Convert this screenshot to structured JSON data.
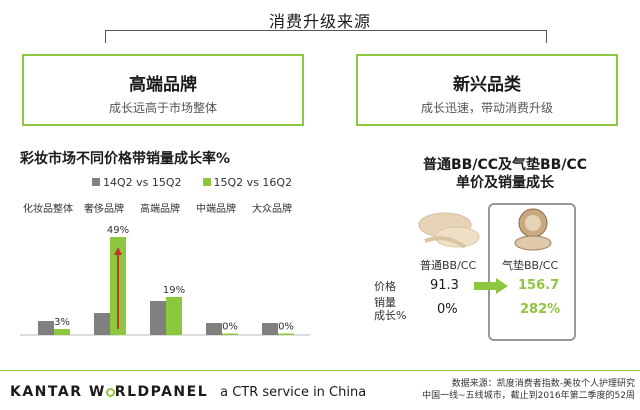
{
  "header": {
    "title": "消费升级来源"
  },
  "left_box": {
    "heading": "高端品牌",
    "subheading": "成长远高于市场整体"
  },
  "right_box": {
    "heading": "新兴品类",
    "subheading": "成长迅速，带动消费升级"
  },
  "chart_data": {
    "type": "bar",
    "title": "彩妆市场不同价格带销量成长率%",
    "categories": [
      "化妆品整体",
      "奢侈品牌",
      "高端品牌",
      "中端品牌",
      "大众品牌"
    ],
    "series": [
      {
        "name": "14Q2 vs 15Q2",
        "color": "#808080",
        "values": [
          7,
          11,
          17,
          6,
          6
        ]
      },
      {
        "name": "15Q2 vs 16Q2",
        "color": "#8dc63f",
        "values": [
          3,
          49,
          19,
          0,
          0
        ]
      }
    ],
    "data_labels": [
      "3%",
      "49%",
      "19%",
      "0%",
      "0%"
    ],
    "ylim": [
      0,
      55
    ]
  },
  "comparison": {
    "title_line1": "普通BB/CC及气垫BB/CC",
    "title_line2": "单价及销量成长",
    "product_a": "普通BB/CC",
    "product_b": "气垫BB/CC",
    "row_price_label": "价格",
    "row_growth_label_1": "销量",
    "row_growth_label_2": "成长%",
    "price_a": "91.3",
    "price_b": "156.7",
    "growth_a": "0%",
    "growth_b": "282%"
  },
  "footer": {
    "logo_part1": "KANTAR W",
    "logo_part2": "RLDPANEL",
    "tagline": "a CTR service in China",
    "source_line1": "数据来源：凯度消费者指数-美妆个人护理研究",
    "source_line2": "中国一线~五线城市，截止到2016年第二季度的52周"
  },
  "colors": {
    "accent": "#8dc63f",
    "grey": "#808080",
    "arrow": "#c0392b"
  }
}
